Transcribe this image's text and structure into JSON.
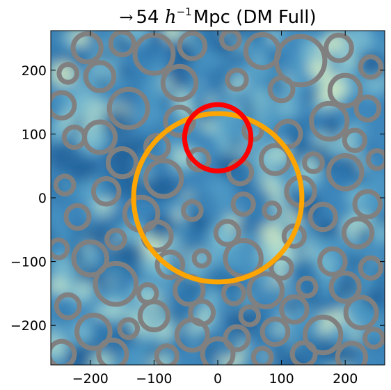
{
  "chart_data": {
    "type": "scatter",
    "title": {
      "arrow": "→",
      "value": "54",
      "h": "h",
      "exp": "−1",
      "rest": "Mpc (DM Full)"
    },
    "xlim": [
      -262,
      262
    ],
    "ylim": [
      -262,
      262
    ],
    "x_ticks": [
      -200,
      -100,
      0,
      100,
      200
    ],
    "y_ticks": [
      200,
      100,
      0,
      -100,
      -200
    ],
    "x_tick_labels": [
      "−200",
      "−100",
      "0",
      "100",
      "200"
    ],
    "y_tick_labels": [
      "200",
      "100",
      "0",
      "−100",
      "−200"
    ],
    "grid": false,
    "background_field": "blue-green density map",
    "highlight_circles": [
      {
        "name": "orange circle",
        "x": 0,
        "y": 0,
        "r": 132,
        "color": "#FFA500"
      },
      {
        "name": "red circle",
        "x": 0,
        "y": 94,
        "r": 52,
        "color": "#FF0000"
      }
    ],
    "voids": {
      "color": "#808080",
      "points": [
        {
          "x": -205,
          "y": 235,
          "r": 22
        },
        {
          "x": -150,
          "y": 242,
          "r": 18
        },
        {
          "x": -100,
          "y": 225,
          "r": 30
        },
        {
          "x": -40,
          "y": 238,
          "r": 20
        },
        {
          "x": 20,
          "y": 248,
          "r": 14
        },
        {
          "x": 70,
          "y": 230,
          "r": 26
        },
        {
          "x": 130,
          "y": 215,
          "r": 38
        },
        {
          "x": 190,
          "y": 235,
          "r": 20
        },
        {
          "x": 240,
          "y": 205,
          "r": 16
        },
        {
          "x": -235,
          "y": 195,
          "r": 14
        },
        {
          "x": -185,
          "y": 190,
          "r": 22
        },
        {
          "x": -60,
          "y": 180,
          "r": 26
        },
        {
          "x": 30,
          "y": 185,
          "r": 15
        },
        {
          "x": 100,
          "y": 170,
          "r": 18
        },
        {
          "x": 200,
          "y": 168,
          "r": 24
        },
        {
          "x": -245,
          "y": 145,
          "r": 20
        },
        {
          "x": -140,
          "y": 140,
          "r": 30
        },
        {
          "x": -60,
          "y": 120,
          "r": 22
        },
        {
          "x": 175,
          "y": 120,
          "r": 28
        },
        {
          "x": 235,
          "y": 140,
          "r": 18
        },
        {
          "x": -225,
          "y": 95,
          "r": 16
        },
        {
          "x": -185,
          "y": 95,
          "r": 24
        },
        {
          "x": -95,
          "y": 80,
          "r": 18
        },
        {
          "x": 55,
          "y": 105,
          "r": 14
        },
        {
          "x": 110,
          "y": 100,
          "r": 20
        },
        {
          "x": 215,
          "y": 90,
          "r": 16
        },
        {
          "x": -150,
          "y": 55,
          "r": 22
        },
        {
          "x": -85,
          "y": 30,
          "r": 28
        },
        {
          "x": -30,
          "y": 60,
          "r": 16
        },
        {
          "x": 35,
          "y": 40,
          "r": 18
        },
        {
          "x": 90,
          "y": 60,
          "r": 22
        },
        {
          "x": 150,
          "y": 55,
          "r": 14
        },
        {
          "x": 200,
          "y": 40,
          "r": 26
        },
        {
          "x": 250,
          "y": 60,
          "r": 14
        },
        {
          "x": -240,
          "y": 20,
          "r": 14
        },
        {
          "x": -175,
          "y": 10,
          "r": 20
        },
        {
          "x": 130,
          "y": 10,
          "r": 22
        },
        {
          "x": 235,
          "y": -10,
          "r": 20
        },
        {
          "x": -220,
          "y": -30,
          "r": 18
        },
        {
          "x": -120,
          "y": -25,
          "r": 26
        },
        {
          "x": -40,
          "y": -20,
          "r": 14
        },
        {
          "x": 40,
          "y": -10,
          "r": 16
        },
        {
          "x": 85,
          "y": -20,
          "r": 12
        },
        {
          "x": 165,
          "y": -30,
          "r": 20
        },
        {
          "x": -160,
          "y": -65,
          "r": 14
        },
        {
          "x": -95,
          "y": -60,
          "r": 22
        },
        {
          "x": 15,
          "y": -55,
          "r": 18
        },
        {
          "x": 120,
          "y": -60,
          "r": 16
        },
        {
          "x": 220,
          "y": -55,
          "r": 22
        },
        {
          "x": -250,
          "y": -80,
          "r": 14
        },
        {
          "x": -200,
          "y": -95,
          "r": 26
        },
        {
          "x": -75,
          "y": -105,
          "r": 20
        },
        {
          "x": -25,
          "y": -95,
          "r": 12
        },
        {
          "x": 40,
          "y": -95,
          "r": 28
        },
        {
          "x": 100,
          "y": -110,
          "r": 16
        },
        {
          "x": 180,
          "y": -100,
          "r": 20
        },
        {
          "x": 240,
          "y": -110,
          "r": 16
        },
        {
          "x": -160,
          "y": -135,
          "r": 32
        },
        {
          "x": -110,
          "y": -150,
          "r": 14
        },
        {
          "x": -45,
          "y": -145,
          "r": 22
        },
        {
          "x": 25,
          "y": -150,
          "r": 16
        },
        {
          "x": 75,
          "y": -145,
          "r": 26
        },
        {
          "x": 140,
          "y": -140,
          "r": 14
        },
        {
          "x": 200,
          "y": -140,
          "r": 22
        },
        {
          "x": -235,
          "y": -170,
          "r": 18
        },
        {
          "x": -100,
          "y": -185,
          "r": 22
        },
        {
          "x": -25,
          "y": -180,
          "r": 18
        },
        {
          "x": 50,
          "y": -185,
          "r": 14
        },
        {
          "x": 120,
          "y": -175,
          "r": 20
        },
        {
          "x": 225,
          "y": -180,
          "r": 24
        },
        {
          "x": -195,
          "y": -210,
          "r": 26
        },
        {
          "x": -140,
          "y": -205,
          "r": 14
        },
        {
          "x": -40,
          "y": -215,
          "r": 24
        },
        {
          "x": 30,
          "y": -220,
          "r": 18
        },
        {
          "x": 90,
          "y": -210,
          "r": 20
        },
        {
          "x": 165,
          "y": -215,
          "r": 28
        },
        {
          "x": 245,
          "y": -220,
          "r": 14
        },
        {
          "x": -245,
          "y": -245,
          "r": 20
        },
        {
          "x": -165,
          "y": -245,
          "r": 22
        },
        {
          "x": -80,
          "y": -248,
          "r": 16
        },
        {
          "x": 0,
          "y": -245,
          "r": 24
        },
        {
          "x": 70,
          "y": -250,
          "r": 14
        },
        {
          "x": 135,
          "y": -245,
          "r": 18
        },
        {
          "x": 210,
          "y": -250,
          "r": 22
        }
      ]
    }
  }
}
